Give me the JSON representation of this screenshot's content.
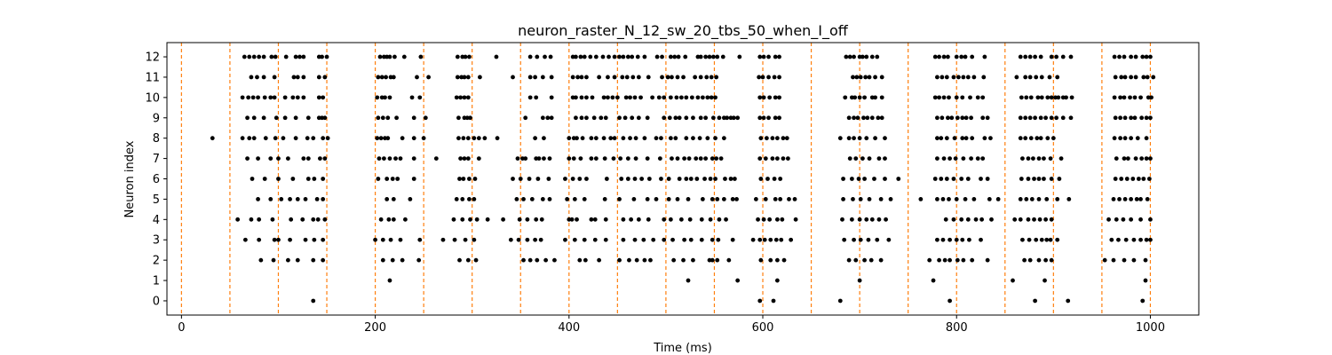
{
  "chart_data": {
    "type": "scatter",
    "title": "neuron_raster_N_12_sw_20_tbs_50_when_I_off",
    "xlabel": "Time (ms)",
    "ylabel": "Neuron index",
    "xlim": [
      -15,
      1050
    ],
    "ylim": [
      -0.7,
      12.7
    ],
    "x_ticks": [
      0,
      200,
      400,
      600,
      800,
      1000
    ],
    "y_ticks": [
      0,
      1,
      2,
      3,
      4,
      5,
      6,
      7,
      8,
      9,
      10,
      11,
      12
    ],
    "grid": false,
    "marker_color": "#000000",
    "vline_color": "#ff7f0e",
    "vlines": [
      0,
      50,
      100,
      150,
      200,
      250,
      300,
      350,
      400,
      450,
      500,
      550,
      600,
      650,
      700,
      750,
      800,
      850,
      900,
      950,
      1000
    ],
    "spikes": [
      {
        "neuron": 12,
        "times": [
          65,
          70,
          75,
          80,
          85,
          93,
          97,
          108,
          118,
          122,
          126,
          142,
          145,
          150,
          205,
          209,
          212,
          215,
          220,
          230,
          247,
          285,
          290,
          293,
          297,
          325,
          360,
          367,
          375,
          381,
          404,
          407,
          412,
          416,
          422,
          428,
          435,
          441,
          447,
          452,
          456,
          461,
          465,
          471,
          478,
          491,
          496,
          505,
          509,
          513,
          520,
          533,
          536,
          541,
          545,
          549,
          553,
          559,
          576,
          597,
          601,
          606,
          613,
          617,
          686,
          690,
          694,
          700,
          703,
          707,
          713,
          718,
          778,
          782,
          787,
          791,
          800,
          805,
          809,
          816,
          829,
          866,
          871,
          876,
          881,
          887,
          898,
          903,
          910,
          918,
          963,
          968,
          973,
          980,
          985,
          992,
          996,
          1000
        ]
      },
      {
        "neuron": 11,
        "times": [
          72,
          78,
          85,
          96,
          116,
          120,
          126,
          142,
          148,
          203,
          207,
          211,
          216,
          219,
          243,
          255,
          285,
          289,
          292,
          296,
          308,
          342,
          360,
          365,
          373,
          382,
          404,
          409,
          413,
          418,
          431,
          440,
          447,
          455,
          460,
          466,
          472,
          482,
          496,
          502,
          506,
          512,
          518,
          530,
          536,
          542,
          547,
          552,
          596,
          600,
          606,
          612,
          617,
          693,
          697,
          701,
          706,
          710,
          716,
          723,
          780,
          785,
          790,
          797,
          802,
          807,
          812,
          818,
          828,
          862,
          871,
          876,
          882,
          888,
          896,
          904,
          964,
          970,
          974,
          980,
          985,
          993,
          997,
          1003
        ]
      },
      {
        "neuron": 10,
        "times": [
          63,
          69,
          74,
          79,
          86,
          92,
          96,
          107,
          115,
          120,
          126,
          142,
          146,
          202,
          207,
          210,
          215,
          238,
          246,
          284,
          288,
          292,
          296,
          360,
          366,
          382,
          404,
          407,
          413,
          418,
          424,
          436,
          440,
          445,
          450,
          459,
          463,
          468,
          474,
          486,
          493,
          498,
          505,
          511,
          516,
          521,
          527,
          533,
          538,
          543,
          547,
          551,
          597,
          601,
          607,
          613,
          617,
          685,
          692,
          695,
          700,
          705,
          713,
          716,
          723,
          778,
          782,
          787,
          792,
          800,
          806,
          814,
          822,
          827,
          867,
          872,
          877,
          884,
          888,
          894,
          898,
          902,
          905,
          910,
          913,
          919,
          963,
          969,
          973,
          979,
          984,
          990,
          998,
          1001
        ]
      },
      {
        "neuron": 9,
        "times": [
          68,
          75,
          85,
          98,
          107,
          118,
          131,
          142,
          145,
          148,
          203,
          208,
          213,
          222,
          240,
          252,
          286,
          292,
          295,
          298,
          355,
          373,
          378,
          382,
          407,
          413,
          418,
          426,
          433,
          438,
          452,
          458,
          465,
          472,
          481,
          498,
          504,
          510,
          514,
          521,
          528,
          536,
          541,
          549,
          555,
          560,
          563,
          567,
          570,
          574,
          597,
          601,
          606,
          613,
          617,
          689,
          694,
          698,
          704,
          708,
          713,
          719,
          723,
          780,
          785,
          791,
          795,
          801,
          806,
          810,
          815,
          827,
          832,
          866,
          871,
          876,
          881,
          887,
          892,
          898,
          903,
          910,
          918,
          964,
          969,
          974,
          980,
          984,
          991,
          996,
          1000
        ]
      },
      {
        "neuron": 8,
        "times": [
          32,
          63,
          70,
          75,
          87,
          97,
          105,
          118,
          130,
          136,
          146,
          151,
          202,
          206,
          210,
          213,
          228,
          240,
          250,
          286,
          291,
          296,
          302,
          307,
          313,
          326,
          365,
          374,
          400,
          405,
          408,
          414,
          423,
          428,
          436,
          443,
          447,
          456,
          463,
          469,
          478,
          490,
          495,
          505,
          510,
          521,
          528,
          535,
          543,
          551,
          560,
          598,
          604,
          610,
          615,
          621,
          625,
          680,
          689,
          694,
          700,
          707,
          716,
          726,
          780,
          784,
          790,
          798,
          806,
          810,
          816,
          829,
          835,
          866,
          871,
          877,
          883,
          887,
          894,
          900,
          963,
          969,
          974,
          980,
          987,
          996
        ]
      },
      {
        "neuron": 7,
        "times": [
          68,
          79,
          92,
          100,
          110,
          126,
          131,
          143,
          148,
          204,
          209,
          215,
          221,
          226,
          240,
          263,
          288,
          292,
          296,
          307,
          347,
          352,
          355,
          366,
          369,
          374,
          380,
          400,
          405,
          412,
          423,
          428,
          437,
          446,
          453,
          461,
          469,
          481,
          494,
          506,
          512,
          519,
          524,
          531,
          536,
          541,
          548,
          552,
          557,
          597,
          603,
          610,
          615,
          621,
          626,
          690,
          696,
          703,
          710,
          720,
          726,
          780,
          787,
          793,
          799,
          807,
          815,
          822,
          827,
          868,
          874,
          879,
          885,
          890,
          897,
          908,
          965,
          973,
          977,
          985,
          991,
          996,
          1000
        ]
      },
      {
        "neuron": 6,
        "times": [
          73,
          86,
          100,
          115,
          131,
          137,
          146,
          203,
          212,
          218,
          223,
          240,
          287,
          291,
          297,
          303,
          342,
          350,
          359,
          368,
          379,
          396,
          404,
          411,
          418,
          439,
          454,
          461,
          468,
          475,
          483,
          495,
          503,
          514,
          521,
          526,
          532,
          540,
          546,
          551,
          561,
          567,
          571,
          598,
          605,
          612,
          618,
          683,
          692,
          699,
          705,
          715,
          726,
          740,
          778,
          784,
          790,
          797,
          805,
          812,
          825,
          832,
          867,
          874,
          880,
          885,
          890,
          898,
          906,
          964,
          970,
          976,
          982,
          988,
          993,
          999
        ]
      },
      {
        "neuron": 5,
        "times": [
          79,
          92,
          103,
          112,
          120,
          128,
          140,
          146,
          212,
          219,
          236,
          284,
          290,
          297,
          302,
          346,
          353,
          362,
          373,
          380,
          398,
          406,
          416,
          437,
          452,
          467,
          481,
          490,
          503,
          512,
          523,
          538,
          548,
          553,
          560,
          569,
          573,
          593,
          603,
          613,
          618,
          627,
          633,
          683,
          693,
          701,
          710,
          722,
          732,
          763,
          780,
          786,
          792,
          800,
          809,
          818,
          834,
          843,
          866,
          872,
          878,
          885,
          893,
          904,
          916,
          962,
          968,
          974,
          980,
          986,
          990,
          997
        ]
      },
      {
        "neuron": 4,
        "times": [
          58,
          72,
          80,
          94,
          113,
          125,
          136,
          141,
          148,
          206,
          214,
          219,
          231,
          281,
          290,
          298,
          305,
          316,
          332,
          349,
          357,
          366,
          372,
          400,
          403,
          408,
          423,
          427,
          438,
          456,
          464,
          472,
          482,
          498,
          505,
          516,
          525,
          537,
          546,
          555,
          562,
          595,
          601,
          607,
          615,
          620,
          634,
          682,
          692,
          700,
          707,
          713,
          720,
          727,
          789,
          797,
          805,
          812,
          820,
          826,
          836,
          860,
          866,
          874,
          880,
          886,
          892,
          898,
          957,
          965,
          972,
          980,
          990,
          1000
        ]
      },
      {
        "neuron": 3,
        "times": [
          66,
          80,
          96,
          100,
          112,
          128,
          137,
          146,
          200,
          208,
          216,
          226,
          246,
          270,
          282,
          293,
          302,
          340,
          348,
          357,
          365,
          371,
          396,
          406,
          416,
          427,
          438,
          456,
          468,
          477,
          487,
          498,
          507,
          519,
          526,
          537,
          548,
          554,
          569,
          590,
          597,
          602,
          608,
          614,
          619,
          629,
          684,
          694,
          701,
          709,
          718,
          730,
          780,
          786,
          793,
          800,
          806,
          813,
          825,
          868,
          875,
          882,
          888,
          893,
          897,
          904,
          960,
          967,
          975,
          983,
          990,
          996,
          1000
        ]
      },
      {
        "neuron": 2,
        "times": [
          82,
          95,
          110,
          120,
          136,
          146,
          208,
          218,
          228,
          245,
          287,
          296,
          304,
          353,
          360,
          367,
          376,
          385,
          411,
          417,
          431,
          452,
          462,
          470,
          478,
          484,
          508,
          518,
          528,
          545,
          548,
          553,
          565,
          598,
          608,
          615,
          622,
          689,
          696,
          705,
          712,
          722,
          772,
          782,
          788,
          793,
          801,
          807,
          816,
          832,
          870,
          876,
          885,
          892,
          898,
          953,
          962,
          973,
          983,
          995
        ]
      },
      {
        "neuron": 1,
        "times": [
          215,
          523,
          574,
          615,
          700,
          776,
          858,
          891,
          995
        ]
      },
      {
        "neuron": 0,
        "times": [
          136,
          597,
          611,
          680,
          793,
          881,
          915,
          992
        ]
      }
    ]
  }
}
